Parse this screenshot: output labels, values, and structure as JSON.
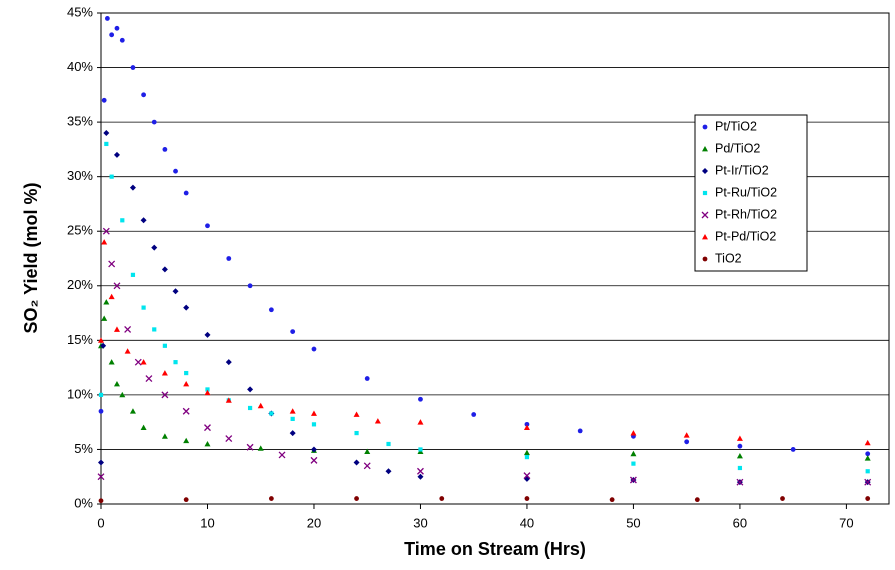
{
  "chart_data": {
    "type": "scatter",
    "x_label": "Time on Stream (Hrs)",
    "y_label": "SO₂ Yield (mol %)",
    "xlim": [
      0,
      74
    ],
    "xticks": [
      0,
      10,
      20,
      30,
      40,
      50,
      60,
      70
    ],
    "ylim": [
      0,
      45
    ],
    "yticks": [
      {
        "value": 0,
        "label": "0%"
      },
      {
        "value": 5,
        "label": "5%"
      },
      {
        "value": 10,
        "label": "10%"
      },
      {
        "value": 15,
        "label": "15%"
      },
      {
        "value": 20,
        "label": "20%"
      },
      {
        "value": 25,
        "label": "25%"
      },
      {
        "value": 30,
        "label": "30%"
      },
      {
        "value": 35,
        "label": "35%"
      },
      {
        "value": 40,
        "label": "40%"
      },
      {
        "value": 45,
        "label": "45%"
      }
    ],
    "grid": true,
    "legend_position": "upper right",
    "series": [
      {
        "name": "Pt/TiO2",
        "color": "#1f1fe6",
        "marker": "circle",
        "x": [
          0,
          0.3,
          0.6,
          1,
          1.5,
          2,
          3,
          4,
          5,
          6,
          7,
          8,
          10,
          12,
          14,
          16,
          18,
          20,
          25,
          30,
          35,
          40,
          45,
          50,
          55,
          60,
          65,
          72
        ],
        "values": [
          8.5,
          37,
          44.5,
          43,
          43.6,
          42.5,
          40,
          37.5,
          35,
          32.5,
          30.5,
          28.5,
          25.5,
          22.5,
          20,
          17.8,
          15.8,
          14.2,
          11.5,
          9.6,
          8.2,
          7.3,
          6.7,
          6.2,
          5.7,
          5.3,
          5,
          4.6
        ]
      },
      {
        "name": "Pd/TiO2",
        "color": "#008000",
        "marker": "triangle",
        "x": [
          0,
          0.3,
          0.5,
          1,
          1.5,
          2,
          3,
          4,
          6,
          8,
          10,
          15,
          20,
          25,
          30,
          40,
          50,
          60,
          72
        ],
        "values": [
          14.5,
          17,
          18.5,
          13,
          11,
          10,
          8.5,
          7,
          6.2,
          5.8,
          5.5,
          5.1,
          4.9,
          4.8,
          4.8,
          4.7,
          4.6,
          4.4,
          4.2
        ]
      },
      {
        "name": "Pt-Ir/TiO2",
        "color": "#000080",
        "marker": "diamond",
        "x": [
          0,
          0.2,
          0.5,
          1.5,
          3,
          4,
          5,
          6,
          7,
          8,
          10,
          12,
          14,
          16,
          18,
          20,
          24,
          27,
          30,
          40,
          50,
          60,
          72
        ],
        "values": [
          3.8,
          14.5,
          34,
          32,
          29,
          26,
          23.5,
          21.5,
          19.5,
          18,
          15.5,
          13,
          10.5,
          8.3,
          6.5,
          5,
          3.8,
          3,
          2.5,
          2.3,
          2.2,
          2,
          2
        ]
      },
      {
        "name": "Pt-Ru/TiO2",
        "color": "#00e5ee",
        "marker": "square",
        "x": [
          0,
          0.5,
          1,
          2,
          3,
          4,
          5,
          6,
          7,
          8,
          10,
          12,
          14,
          16,
          18,
          20,
          24,
          27,
          30,
          40,
          50,
          60,
          72
        ],
        "values": [
          10,
          33,
          30,
          26,
          21,
          18,
          16,
          14.5,
          13,
          12,
          10.5,
          9.5,
          8.8,
          8.3,
          7.8,
          7.3,
          6.5,
          5.5,
          5,
          4.3,
          3.7,
          3.3,
          3
        ]
      },
      {
        "name": "Pt-Rh/TiO2",
        "color": "#800080",
        "marker": "x",
        "x": [
          0,
          0.5,
          1,
          1.5,
          2.5,
          3.5,
          4.5,
          6,
          8,
          10,
          12,
          14,
          17,
          20,
          25,
          30,
          40,
          50,
          60,
          72
        ],
        "values": [
          2.5,
          25,
          22,
          20,
          16,
          13,
          11.5,
          10,
          8.5,
          7,
          6,
          5.2,
          4.5,
          4,
          3.5,
          3,
          2.6,
          2.2,
          2,
          2
        ]
      },
      {
        "name": "Pt-Pd/TiO2",
        "color": "#ff0000",
        "marker": "triangle",
        "x": [
          0,
          0.3,
          1,
          1.5,
          2.5,
          4,
          6,
          8,
          10,
          12,
          15,
          18,
          20,
          24,
          26,
          30,
          40,
          50,
          55,
          60,
          72
        ],
        "values": [
          15,
          24,
          19,
          16,
          14,
          13,
          12,
          11,
          10.2,
          9.5,
          9,
          8.5,
          8.3,
          8.2,
          7.6,
          7.5,
          7,
          6.5,
          6.3,
          6,
          5.6
        ]
      },
      {
        "name": "TiO2",
        "color": "#800000",
        "marker": "circle",
        "x": [
          0,
          8,
          16,
          24,
          32,
          40,
          48,
          56,
          64,
          72
        ],
        "values": [
          0.3,
          0.4,
          0.5,
          0.5,
          0.5,
          0.5,
          0.4,
          0.4,
          0.5,
          0.5
        ]
      }
    ]
  }
}
